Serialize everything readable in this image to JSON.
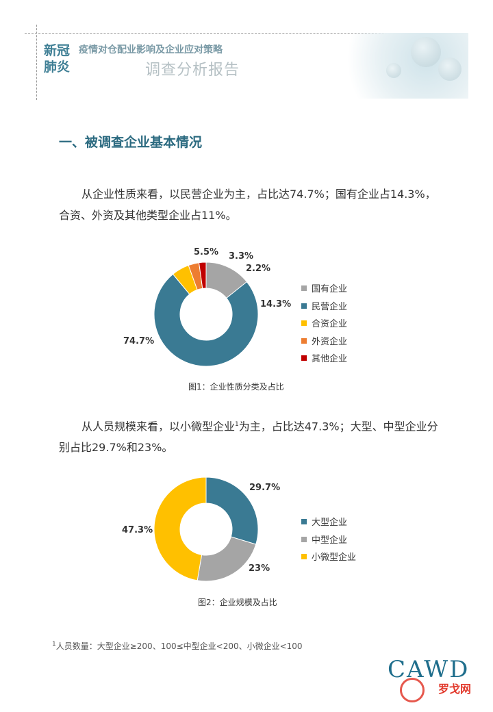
{
  "header": {
    "brand": "新冠\n肺炎",
    "subtitle": "疫情对仓配业影响及企业应对策略",
    "report": "调查分析报告"
  },
  "section_title": "一、被调查企业基本情况",
  "paragraph1": "从企业性质来看，以民营企业为主，占比达74.7%；国有企业占14.3%，合资、外资及其他类型企业占11%。",
  "paragraph2_a": "从人员规模来看，以小微型企业",
  "paragraph2_sup": "1",
  "paragraph2_b": "为主，占比达47.3%；大型、中型企业分别占比29.7%和23%。",
  "chart_data": [
    {
      "type": "pie",
      "donut": true,
      "title": "图1：企业性质分类及占比",
      "legend_position": "right",
      "categories": [
        "国有企业",
        "民营企业",
        "合资企业",
        "外资企业",
        "其他企业"
      ],
      "values": [
        14.3,
        74.7,
        5.5,
        3.3,
        2.2
      ],
      "labels": [
        "14.3%",
        "74.7%",
        "5.5%",
        "3.3%",
        "2.2%"
      ],
      "colors": [
        "#a5a5a5",
        "#3a7a93",
        "#ffc000",
        "#ed7d31",
        "#c00000"
      ]
    },
    {
      "type": "pie",
      "donut": true,
      "title": "图2：企业规模及占比",
      "legend_position": "right",
      "categories": [
        "大型企业",
        "中型企业",
        "小微型企业"
      ],
      "values": [
        29.7,
        23,
        47.3
      ],
      "labels": [
        "29.7%",
        "23%",
        "47.3%"
      ],
      "colors": [
        "#3a7a93",
        "#a5a5a5",
        "#ffc000"
      ]
    }
  ],
  "footnote_mark": "1",
  "footnote": "人员数量：大型企业≥200、100≤中型企业<200、小微企业<100",
  "logo": "CAWD",
  "watermark": "罗戈网"
}
